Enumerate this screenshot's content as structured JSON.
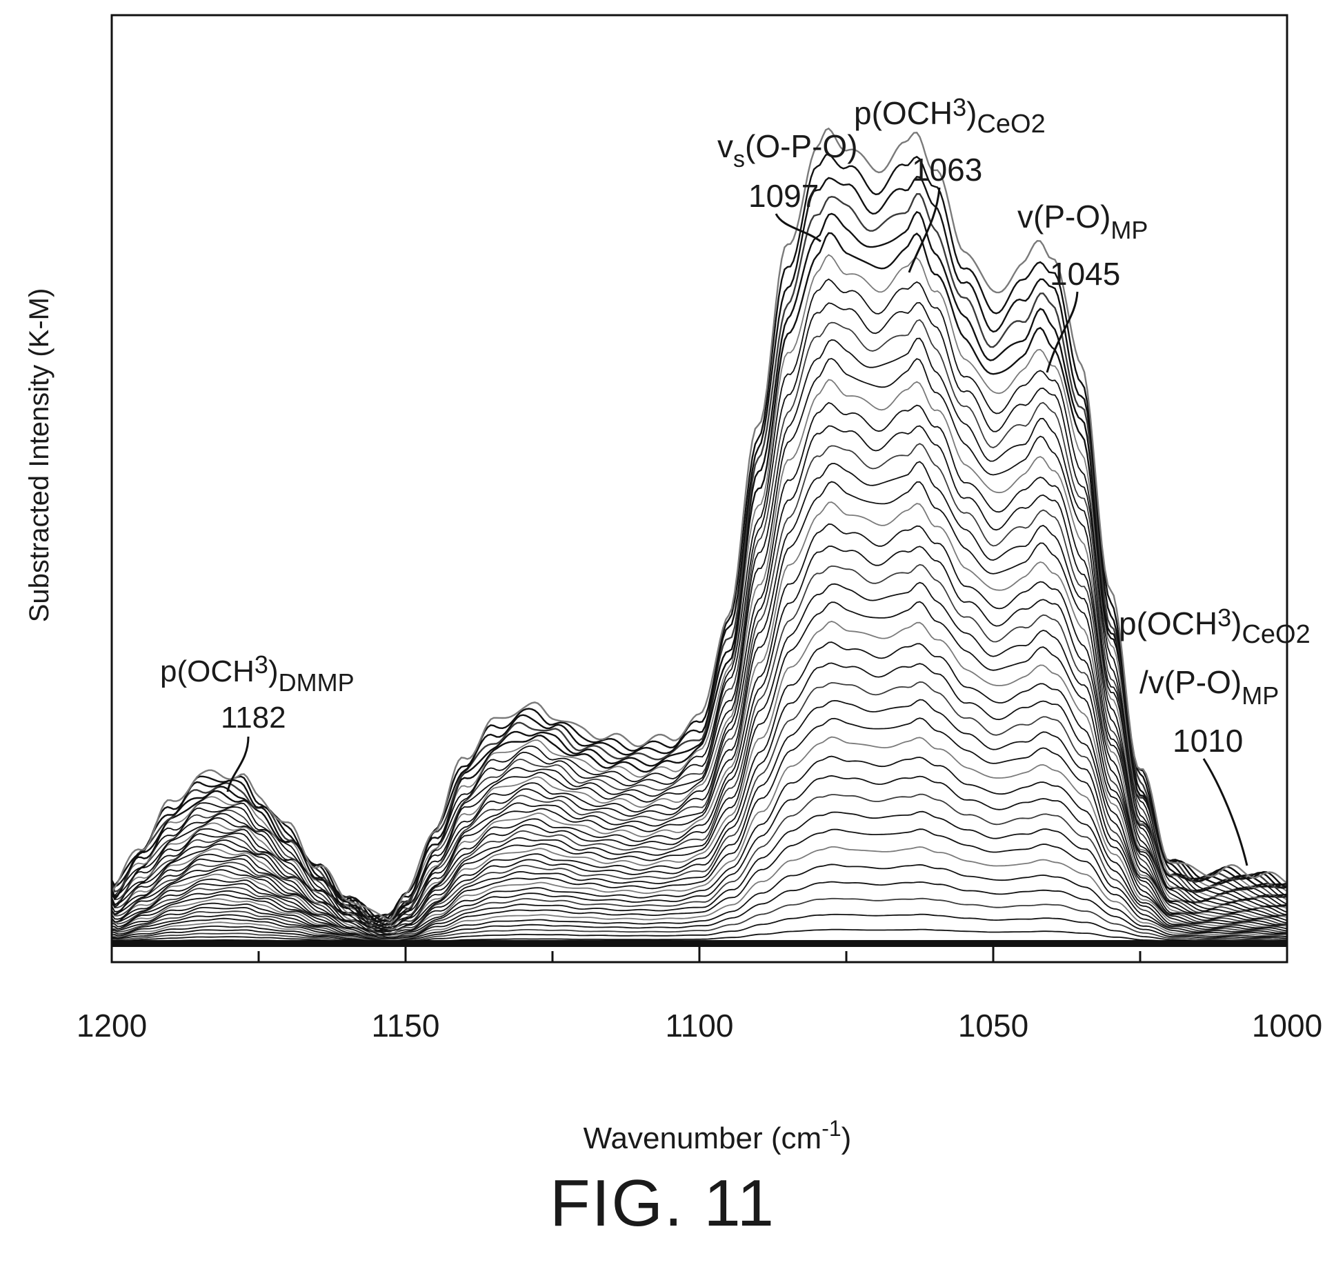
{
  "figure_label": "FIG. 11",
  "chart_data": {
    "type": "line",
    "title": "",
    "xlabel": "Wavenumber (cm",
    "xlabel_sup": "-1",
    "xlabel_close": ")",
    "ylabel": "Substracted Intensity (K-M)",
    "xlim": [
      1200,
      1000
    ],
    "x_reversed": true,
    "ylim": [
      -0.05,
      2.4
    ],
    "x_ticks": [
      1200,
      1150,
      1100,
      1050,
      1000
    ],
    "x_tick_labels": [
      "1200",
      "1150",
      "1100",
      "1050",
      "1000"
    ],
    "y_tick_labels_shown": false,
    "grid": false,
    "legend": "none",
    "series_count": 42,
    "max_spectrum": {
      "x": [
        1200,
        1195,
        1190,
        1185,
        1182,
        1178,
        1175,
        1170,
        1165,
        1160,
        1155,
        1153,
        1150,
        1145,
        1140,
        1135,
        1130,
        1128,
        1125,
        1120,
        1115,
        1110,
        1105,
        1100,
        1095,
        1090,
        1085,
        1080,
        1078,
        1075,
        1070,
        1065,
        1063,
        1060,
        1055,
        1050,
        1045,
        1042,
        1040,
        1035,
        1030,
        1025,
        1020,
        1015,
        1010,
        1005,
        1000
      ],
      "y": [
        0.14,
        0.25,
        0.36,
        0.43,
        0.44,
        0.43,
        0.38,
        0.3,
        0.2,
        0.12,
        0.07,
        0.07,
        0.12,
        0.3,
        0.48,
        0.57,
        0.61,
        0.61,
        0.59,
        0.55,
        0.53,
        0.52,
        0.53,
        0.58,
        0.85,
        1.35,
        1.8,
        2.05,
        2.1,
        2.06,
        2.0,
        2.06,
        2.1,
        2.0,
        1.8,
        1.68,
        1.75,
        1.82,
        1.78,
        1.5,
        0.9,
        0.45,
        0.22,
        0.18,
        0.19,
        0.18,
        0.16
      ]
    },
    "annotations": [
      {
        "label": "p(OCH",
        "sub": "3",
        "close": ")",
        "subscript_tail": "DMMP",
        "value": "1182",
        "x": 1182
      },
      {
        "label": "v",
        "sub": "s",
        "close": "(O-P-O)",
        "subscript_tail": "",
        "value": "1097",
        "x": 1078
      },
      {
        "label": "p(OCH",
        "sub": "3",
        "close": ")",
        "subscript_tail": "CeO2",
        "value": "1063",
        "x": 1063
      },
      {
        "label": "v(P-O)",
        "sub": "",
        "close": "",
        "subscript_tail": "MP",
        "value": "1045",
        "x": 1042
      },
      {
        "label": "p(OCH",
        "sub": "3",
        "close": ")",
        "subscript_tail": "CeO2",
        "line2": "/v(P-O)",
        "line2_tail": "MP",
        "value": "1010",
        "x": 1007
      }
    ]
  }
}
